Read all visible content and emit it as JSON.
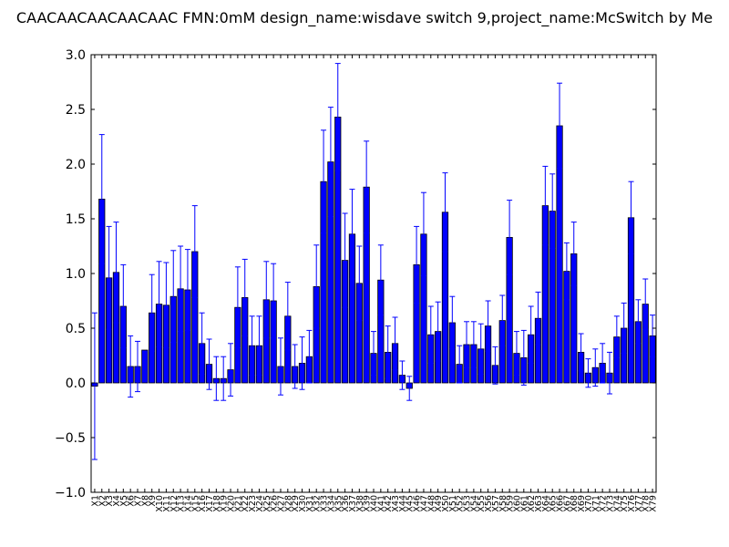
{
  "chart_data": {
    "type": "bar",
    "title": "CAACAACAACAACAAC  FMN:0mM  design_name:wisdave switch 9,project_name:McSwitch by Me",
    "xlabel": "",
    "ylabel": "",
    "ylim": [
      -1.0,
      3.0
    ],
    "yticks": [
      "−1.0",
      "−0.5",
      "0.0",
      "0.5",
      "1.0",
      "1.5",
      "2.0",
      "2.5",
      "3.0"
    ],
    "ytick_values": [
      -1.0,
      -0.5,
      0.0,
      0.5,
      1.0,
      1.5,
      2.0,
      2.5,
      3.0
    ],
    "bar_color": "#0000ff",
    "error_color": "#0000ff",
    "grid": false,
    "categories": [
      "X1",
      "X2",
      "X3",
      "X4",
      "X5",
      "X6",
      "X7",
      "X8",
      "X9",
      "X10",
      "X11",
      "X12",
      "X13",
      "X14",
      "X15",
      "X16",
      "X17",
      "X18",
      "X19",
      "X20",
      "X21",
      "X22",
      "X23",
      "X24",
      "X25",
      "X26",
      "X27",
      "X28",
      "X29",
      "X30",
      "X31",
      "X32",
      "X33",
      "X34",
      "X35",
      "X36",
      "X37",
      "X38",
      "X39",
      "X40",
      "X41",
      "X42",
      "X43",
      "X44",
      "X45",
      "X46",
      "X47",
      "X48",
      "X49",
      "X50",
      "X51",
      "X52",
      "X53",
      "X54",
      "X55",
      "X56",
      "X57",
      "X58",
      "X59",
      "X60",
      "X61",
      "X62",
      "X63",
      "X64",
      "X65",
      "X66",
      "X67",
      "X68",
      "X69",
      "X70",
      "X71",
      "X72",
      "X73",
      "X74",
      "X75",
      "X76",
      "X77",
      "X78",
      "X79"
    ],
    "values": [
      -0.03,
      1.68,
      0.96,
      1.01,
      0.7,
      0.15,
      0.15,
      0.3,
      0.64,
      0.72,
      0.71,
      0.79,
      0.86,
      0.85,
      1.2,
      0.36,
      0.17,
      0.04,
      0.04,
      0.12,
      0.69,
      0.78,
      0.34,
      0.34,
      0.76,
      0.75,
      0.15,
      0.61,
      0.15,
      0.18,
      0.24,
      0.88,
      1.84,
      2.02,
      2.43,
      1.12,
      1.36,
      0.91,
      1.79,
      0.27,
      0.94,
      0.28,
      0.36,
      0.07,
      -0.05,
      1.08,
      1.36,
      0.44,
      0.47,
      1.56,
      0.55,
      0.17,
      0.35,
      0.35,
      0.31,
      0.52,
      0.16,
      0.57,
      1.33,
      0.27,
      0.23,
      0.44,
      0.59,
      1.62,
      1.57,
      2.35,
      1.02,
      1.18,
      0.28,
      0.09,
      0.14,
      0.18,
      0.09,
      0.42,
      0.5,
      1.51,
      0.56,
      0.72,
      0.43
    ],
    "errors": [
      0.67,
      0.59,
      0.47,
      0.46,
      0.38,
      0.28,
      0.23,
      0.0,
      0.35,
      0.39,
      0.39,
      0.42,
      0.39,
      0.37,
      0.42,
      0.28,
      0.23,
      0.2,
      0.2,
      0.24,
      0.37,
      0.35,
      0.27,
      0.27,
      0.35,
      0.34,
      0.26,
      0.31,
      0.2,
      0.24,
      0.24,
      0.38,
      0.47,
      0.5,
      0.49,
      0.43,
      0.41,
      0.34,
      0.42,
      0.2,
      0.32,
      0.24,
      0.24,
      0.13,
      0.11,
      0.35,
      0.38,
      0.26,
      0.27,
      0.36,
      0.24,
      0.17,
      0.21,
      0.21,
      0.23,
      0.23,
      0.17,
      0.23,
      0.34,
      0.2,
      0.25,
      0.26,
      0.24,
      0.36,
      0.34,
      0.39,
      0.26,
      0.29,
      0.17,
      0.13,
      0.17,
      0.18,
      0.19,
      0.19,
      0.23,
      0.33,
      0.2,
      0.23,
      0.19
    ]
  }
}
